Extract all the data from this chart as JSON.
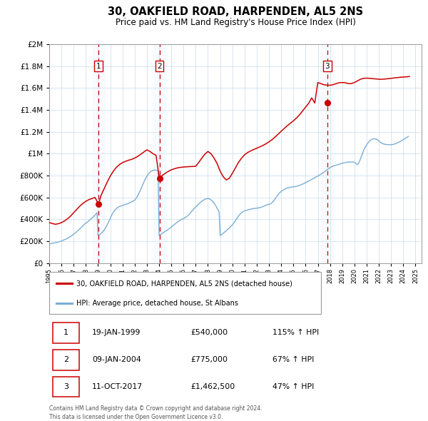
{
  "title": "30, OAKFIELD ROAD, HARPENDEN, AL5 2NS",
  "subtitle": "Price paid vs. HM Land Registry's House Price Index (HPI)",
  "legend_line1": "30, OAKFIELD ROAD, HARPENDEN, AL5 2NS (detached house)",
  "legend_line2": "HPI: Average price, detached house, St Albans",
  "footer1": "Contains HM Land Registry data © Crown copyright and database right 2024.",
  "footer2": "This data is licensed under the Open Government Licence v3.0.",
  "sale_color": "#cc0000",
  "hpi_color": "#7aaed6",
  "vline_color": "#cc0000",
  "vfill_color": "#ddeeff",
  "ylim": [
    0,
    2000000
  ],
  "yticks": [
    0,
    200000,
    400000,
    600000,
    800000,
    1000000,
    1200000,
    1400000,
    1600000,
    1800000,
    2000000
  ],
  "xlim_start": 1995.0,
  "xlim_end": 2025.5,
  "sales": [
    {
      "year": 1999.05,
      "price": 540000,
      "label": "1"
    },
    {
      "year": 2004.03,
      "price": 775000,
      "label": "2"
    },
    {
      "year": 2017.78,
      "price": 1462500,
      "label": "3"
    }
  ],
  "sale_table": [
    {
      "num": "1",
      "date": "19-JAN-1999",
      "price": "£540,000",
      "change": "115% ↑ HPI"
    },
    {
      "num": "2",
      "date": "09-JAN-2004",
      "price": "£775,000",
      "change": "67% ↑ HPI"
    },
    {
      "num": "3",
      "date": "11-OCT-2017",
      "price": "£1,462,500",
      "change": "47% ↑ HPI"
    }
  ],
  "hpi_years": [
    1995.0,
    1995.083,
    1995.167,
    1995.25,
    1995.333,
    1995.417,
    1995.5,
    1995.583,
    1995.667,
    1995.75,
    1995.833,
    1995.917,
    1996.0,
    1996.083,
    1996.167,
    1996.25,
    1996.333,
    1996.417,
    1996.5,
    1996.583,
    1996.667,
    1996.75,
    1996.833,
    1996.917,
    1997.0,
    1997.083,
    1997.167,
    1997.25,
    1997.333,
    1997.417,
    1997.5,
    1997.583,
    1997.667,
    1997.75,
    1997.833,
    1997.917,
    1998.0,
    1998.083,
    1998.167,
    1998.25,
    1998.333,
    1998.417,
    1998.5,
    1998.583,
    1998.667,
    1998.75,
    1998.833,
    1998.917,
    1999.0,
    1999.083,
    1999.167,
    1999.25,
    1999.333,
    1999.417,
    1999.5,
    1999.583,
    1999.667,
    1999.75,
    1999.833,
    1999.917,
    2000.0,
    2000.083,
    2000.167,
    2000.25,
    2000.333,
    2000.417,
    2000.5,
    2000.583,
    2000.667,
    2000.75,
    2000.833,
    2000.917,
    2001.0,
    2001.083,
    2001.167,
    2001.25,
    2001.333,
    2001.417,
    2001.5,
    2001.583,
    2001.667,
    2001.75,
    2001.833,
    2001.917,
    2002.0,
    2002.083,
    2002.167,
    2002.25,
    2002.333,
    2002.417,
    2002.5,
    2002.583,
    2002.667,
    2002.75,
    2002.833,
    2002.917,
    2003.0,
    2003.083,
    2003.167,
    2003.25,
    2003.333,
    2003.417,
    2003.5,
    2003.583,
    2003.667,
    2003.75,
    2003.833,
    2003.917,
    2004.0,
    2004.083,
    2004.167,
    2004.25,
    2004.333,
    2004.417,
    2004.5,
    2004.583,
    2004.667,
    2004.75,
    2004.833,
    2004.917,
    2005.0,
    2005.083,
    2005.167,
    2005.25,
    2005.333,
    2005.417,
    2005.5,
    2005.583,
    2005.667,
    2005.75,
    2005.833,
    2005.917,
    2006.0,
    2006.083,
    2006.167,
    2006.25,
    2006.333,
    2006.417,
    2006.5,
    2006.583,
    2006.667,
    2006.75,
    2006.833,
    2006.917,
    2007.0,
    2007.083,
    2007.167,
    2007.25,
    2007.333,
    2007.417,
    2007.5,
    2007.583,
    2007.667,
    2007.75,
    2007.833,
    2007.917,
    2008.0,
    2008.083,
    2008.167,
    2008.25,
    2008.333,
    2008.417,
    2008.5,
    2008.583,
    2008.667,
    2008.75,
    2008.833,
    2008.917,
    2009.0,
    2009.083,
    2009.167,
    2009.25,
    2009.333,
    2009.417,
    2009.5,
    2009.583,
    2009.667,
    2009.75,
    2009.833,
    2009.917,
    2010.0,
    2010.083,
    2010.167,
    2010.25,
    2010.333,
    2010.417,
    2010.5,
    2010.583,
    2010.667,
    2010.75,
    2010.833,
    2010.917,
    2011.0,
    2011.083,
    2011.167,
    2011.25,
    2011.333,
    2011.417,
    2011.5,
    2011.583,
    2011.667,
    2011.75,
    2011.833,
    2011.917,
    2012.0,
    2012.083,
    2012.167,
    2012.25,
    2012.333,
    2012.417,
    2012.5,
    2012.583,
    2012.667,
    2012.75,
    2012.833,
    2012.917,
    2013.0,
    2013.083,
    2013.167,
    2013.25,
    2013.333,
    2013.417,
    2013.5,
    2013.583,
    2013.667,
    2013.75,
    2013.833,
    2013.917,
    2014.0,
    2014.083,
    2014.167,
    2014.25,
    2014.333,
    2014.417,
    2014.5,
    2014.583,
    2014.667,
    2014.75,
    2014.833,
    2014.917,
    2015.0,
    2015.083,
    2015.167,
    2015.25,
    2015.333,
    2015.417,
    2015.5,
    2015.583,
    2015.667,
    2015.75,
    2015.833,
    2015.917,
    2016.0,
    2016.083,
    2016.167,
    2016.25,
    2016.333,
    2016.417,
    2016.5,
    2016.583,
    2016.667,
    2016.75,
    2016.833,
    2016.917,
    2017.0,
    2017.083,
    2017.167,
    2017.25,
    2017.333,
    2017.417,
    2017.5,
    2017.583,
    2017.667,
    2017.75,
    2017.833,
    2017.917,
    2018.0,
    2018.083,
    2018.167,
    2018.25,
    2018.333,
    2018.417,
    2018.5,
    2018.583,
    2018.667,
    2018.75,
    2018.833,
    2018.917,
    2019.0,
    2019.083,
    2019.167,
    2019.25,
    2019.333,
    2019.417,
    2019.5,
    2019.583,
    2019.667,
    2019.75,
    2019.833,
    2019.917,
    2020.0,
    2020.083,
    2020.167,
    2020.25,
    2020.333,
    2020.417,
    2020.5,
    2020.583,
    2020.667,
    2020.75,
    2020.833,
    2020.917,
    2021.0,
    2021.083,
    2021.167,
    2021.25,
    2021.333,
    2021.417,
    2021.5,
    2021.583,
    2021.667,
    2021.75,
    2021.833,
    2021.917,
    2022.0,
    2022.083,
    2022.167,
    2022.25,
    2022.333,
    2022.417,
    2022.5,
    2022.583,
    2022.667,
    2022.75,
    2022.833,
    2022.917,
    2023.0,
    2023.083,
    2023.167,
    2023.25,
    2023.333,
    2023.417,
    2023.5,
    2023.583,
    2023.667,
    2023.75,
    2023.833,
    2023.917,
    2024.0,
    2024.083,
    2024.167,
    2024.25,
    2024.333,
    2024.417
  ],
  "hpi_vals": [
    175000,
    177000,
    179000,
    181000,
    183000,
    185000,
    187000,
    189000,
    191000,
    193000,
    196000,
    199000,
    202000,
    206000,
    210000,
    214000,
    218000,
    222000,
    227000,
    232000,
    238000,
    244000,
    250000,
    257000,
    264000,
    271000,
    279000,
    287000,
    295000,
    303000,
    312000,
    321000,
    330000,
    340000,
    350000,
    360000,
    365000,
    372000,
    379000,
    387000,
    395000,
    403000,
    411000,
    420000,
    429000,
    439000,
    449000,
    460000,
    252000,
    258000,
    265000,
    272000,
    280000,
    290000,
    302000,
    316000,
    332000,
    350000,
    369000,
    389000,
    409000,
    429000,
    449000,
    465000,
    478000,
    489000,
    498000,
    506000,
    512000,
    517000,
    521000,
    524000,
    527000,
    530000,
    533000,
    536000,
    539000,
    542000,
    546000,
    550000,
    555000,
    560000,
    565000,
    570000,
    576000,
    586000,
    600000,
    616000,
    634000,
    654000,
    675000,
    697000,
    719000,
    740000,
    760000,
    778000,
    794000,
    808000,
    820000,
    830000,
    838000,
    844000,
    848000,
    850000,
    850000,
    849000,
    847000,
    844000,
    252000,
    258000,
    265000,
    272000,
    278000,
    284000,
    290000,
    296000,
    302000,
    308000,
    315000,
    322000,
    330000,
    338000,
    346000,
    353000,
    361000,
    368000,
    375000,
    382000,
    388000,
    394000,
    399000,
    404000,
    408000,
    413000,
    418000,
    425000,
    432000,
    441000,
    451000,
    462000,
    473000,
    484000,
    494000,
    504000,
    513000,
    522000,
    531000,
    540000,
    549000,
    557000,
    565000,
    572000,
    578000,
    583000,
    587000,
    589000,
    590000,
    588000,
    584000,
    578000,
    570000,
    560000,
    548000,
    534000,
    519000,
    503000,
    486000,
    469000,
    253000,
    258000,
    265000,
    272000,
    280000,
    288000,
    296000,
    304000,
    312000,
    321000,
    330000,
    340000,
    350000,
    362000,
    375000,
    388000,
    402000,
    416000,
    430000,
    442000,
    452000,
    460000,
    467000,
    472000,
    476000,
    480000,
    483000,
    486000,
    489000,
    491000,
    493000,
    495000,
    497000,
    499000,
    500000,
    501000,
    502000,
    503000,
    505000,
    507000,
    510000,
    513000,
    517000,
    521000,
    525000,
    529000,
    532000,
    535000,
    537000,
    540000,
    545000,
    552000,
    562000,
    574000,
    587000,
    601000,
    614000,
    626000,
    637000,
    647000,
    655000,
    662000,
    668000,
    674000,
    679000,
    683000,
    686000,
    689000,
    691000,
    693000,
    695000,
    696000,
    697000,
    698000,
    700000,
    702000,
    705000,
    708000,
    711000,
    714000,
    718000,
    722000,
    726000,
    730000,
    735000,
    740000,
    745000,
    750000,
    755000,
    760000,
    765000,
    770000,
    775000,
    780000,
    785000,
    790000,
    795000,
    800000,
    806000,
    812000,
    818000,
    824000,
    831000,
    838000,
    845000,
    852000,
    859000,
    866000,
    873000,
    878000,
    883000,
    887000,
    890000,
    893000,
    895000,
    897000,
    900000,
    903000,
    906000,
    910000,
    912000,
    915000,
    917000,
    919000,
    921000,
    922000,
    923000,
    924000,
    924000,
    924000,
    924000,
    924000,
    920000,
    914000,
    905000,
    900000,
    910000,
    930000,
    955000,
    980000,
    1005000,
    1028000,
    1048000,
    1065000,
    1080000,
    1094000,
    1106000,
    1116000,
    1124000,
    1130000,
    1134000,
    1136000,
    1136000,
    1134000,
    1130000,
    1124000,
    1115000,
    1107000,
    1100000,
    1095000,
    1091000,
    1088000,
    1086000,
    1084000,
    1083000,
    1082000,
    1082000,
    1082000,
    1082000,
    1083000,
    1085000,
    1087000,
    1090000,
    1094000,
    1098000,
    1102000,
    1107000,
    1112000,
    1117000,
    1122000,
    1128000,
    1134000,
    1140000,
    1146000,
    1152000,
    1158000
  ],
  "sold_years": [
    1995.0,
    1995.25,
    1995.5,
    1995.75,
    1996.0,
    1996.25,
    1996.5,
    1996.75,
    1997.0,
    1997.25,
    1997.5,
    1997.75,
    1998.0,
    1998.25,
    1998.5,
    1998.75,
    1999.04,
    1999.25,
    1999.5,
    1999.75,
    2000.0,
    2000.25,
    2000.5,
    2000.75,
    2001.0,
    2001.25,
    2001.5,
    2001.75,
    2002.0,
    2002.25,
    2002.5,
    2002.75,
    2003.0,
    2003.25,
    2003.5,
    2003.75,
    2004.02,
    2004.25,
    2004.5,
    2004.75,
    2005.0,
    2005.25,
    2005.5,
    2005.75,
    2006.0,
    2006.25,
    2006.5,
    2006.75,
    2007.0,
    2007.25,
    2007.5,
    2007.75,
    2008.0,
    2008.25,
    2008.5,
    2008.75,
    2009.0,
    2009.25,
    2009.5,
    2009.75,
    2010.0,
    2010.25,
    2010.5,
    2010.75,
    2011.0,
    2011.25,
    2011.5,
    2011.75,
    2012.0,
    2012.25,
    2012.5,
    2012.75,
    2013.0,
    2013.25,
    2013.5,
    2013.75,
    2014.0,
    2014.25,
    2014.5,
    2014.75,
    2015.0,
    2015.25,
    2015.5,
    2015.75,
    2016.0,
    2016.25,
    2016.5,
    2016.75,
    2017.0,
    2017.25,
    2017.5,
    2017.79,
    2018.0,
    2018.25,
    2018.5,
    2018.75,
    2019.0,
    2019.25,
    2019.5,
    2019.75,
    2020.0,
    2020.25,
    2020.5,
    2020.75,
    2021.0,
    2021.25,
    2021.5,
    2021.75,
    2022.0,
    2022.25,
    2022.5,
    2022.75,
    2023.0,
    2023.25,
    2023.5,
    2023.75,
    2024.0,
    2024.25,
    2024.5
  ],
  "sold_vals": [
    370000,
    362000,
    355000,
    360000,
    370000,
    385000,
    405000,
    430000,
    460000,
    490000,
    520000,
    545000,
    565000,
    580000,
    590000,
    600000,
    540000,
    620000,
    680000,
    740000,
    795000,
    840000,
    875000,
    900000,
    918000,
    930000,
    940000,
    948000,
    960000,
    975000,
    995000,
    1015000,
    1035000,
    1020000,
    1000000,
    985000,
    775000,
    800000,
    820000,
    838000,
    852000,
    862000,
    870000,
    875000,
    878000,
    880000,
    882000,
    883000,
    885000,
    920000,
    960000,
    995000,
    1020000,
    1000000,
    960000,
    910000,
    840000,
    790000,
    760000,
    775000,
    820000,
    870000,
    920000,
    958000,
    990000,
    1010000,
    1025000,
    1038000,
    1050000,
    1062000,
    1075000,
    1090000,
    1108000,
    1128000,
    1152000,
    1178000,
    1205000,
    1230000,
    1255000,
    1278000,
    1300000,
    1325000,
    1355000,
    1390000,
    1425000,
    1460000,
    1510000,
    1462500,
    1650000,
    1640000,
    1630000,
    1625000,
    1625000,
    1630000,
    1640000,
    1648000,
    1650000,
    1648000,
    1640000,
    1640000,
    1650000,
    1665000,
    1680000,
    1688000,
    1690000,
    1688000,
    1685000,
    1683000,
    1680000,
    1680000,
    1682000,
    1685000,
    1688000,
    1692000,
    1695000,
    1698000,
    1700000,
    1702000,
    1705000
  ]
}
